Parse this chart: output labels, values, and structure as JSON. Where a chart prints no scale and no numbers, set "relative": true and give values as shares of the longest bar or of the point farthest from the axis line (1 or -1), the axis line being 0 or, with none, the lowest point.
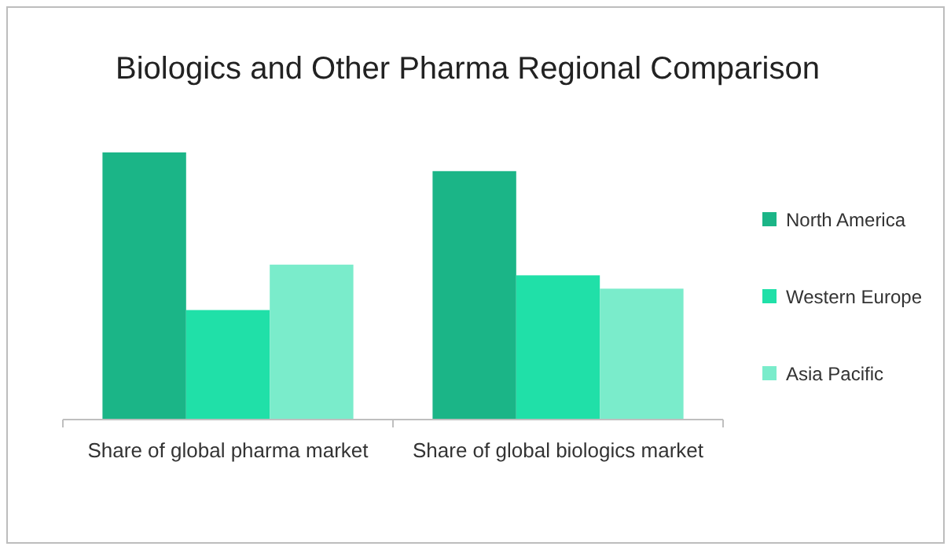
{
  "chart_data": {
    "type": "bar",
    "title": "Biologics and Other Pharma Regional Comparison",
    "categories": [
      "Share of global pharma market",
      "Share of global biologics market"
    ],
    "relative": true,
    "legend": "right",
    "series": [
      {
        "name": "North America",
        "color": "#1bb587",
        "values": [
          1,
          0.93
        ]
      },
      {
        "name": "Western Europe",
        "color": "#20e0a8",
        "values": [
          0.41,
          0.54
        ]
      },
      {
        "name": "Asia Pacific",
        "color": "#7aeccb",
        "values": [
          0.58,
          0.49
        ]
      }
    ]
  }
}
